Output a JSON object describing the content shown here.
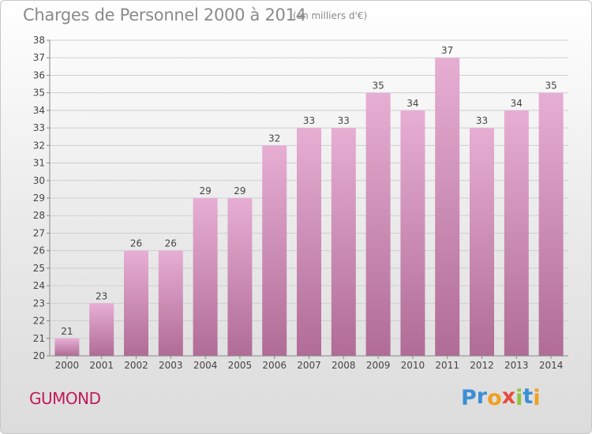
{
  "title": "Charges de Personnel 2000 à 2014",
  "subtitle": "(en milliers d'€)",
  "commune": "GUMOND",
  "logo": {
    "letters": [
      "P",
      "r",
      "o",
      "x",
      "i",
      "t",
      "i"
    ],
    "colors": [
      "#3b8fd6",
      "#3b8fd6",
      "#f0a020",
      "#e84c3d",
      "#8dc63f",
      "#3b8fd6",
      "#f0a020"
    ]
  },
  "colors": {
    "bar_top": "#e7aed4",
    "bar_bottom": "#b06c96",
    "grid": "#cfcfcf",
    "axis": "#888888",
    "text": "#444444",
    "commune": "#c2185b"
  },
  "chart_data": {
    "type": "bar",
    "categories": [
      "2000",
      "2001",
      "2002",
      "2003",
      "2004",
      "2005",
      "2006",
      "2007",
      "2008",
      "2009",
      "2010",
      "2011",
      "2012",
      "2013",
      "2014"
    ],
    "values": [
      21,
      23,
      26,
      26,
      29,
      29,
      32,
      33,
      33,
      35,
      34,
      37,
      33,
      34,
      35
    ],
    "data_labels": [
      "21",
      "23",
      "26",
      "26",
      "29",
      "29",
      "32",
      "33",
      "33",
      "35",
      "34",
      "37",
      "33",
      "34",
      "35"
    ],
    "yticks": [
      "20",
      "21",
      "22",
      "23",
      "24",
      "25",
      "26",
      "27",
      "28",
      "29",
      "30",
      "31",
      "32",
      "33",
      "34",
      "35",
      "36",
      "37",
      "38"
    ],
    "ylim": [
      20,
      38
    ],
    "title": "Charges de Personnel 2000 à 2014",
    "xlabel": "",
    "ylabel": "",
    "grid": true
  }
}
